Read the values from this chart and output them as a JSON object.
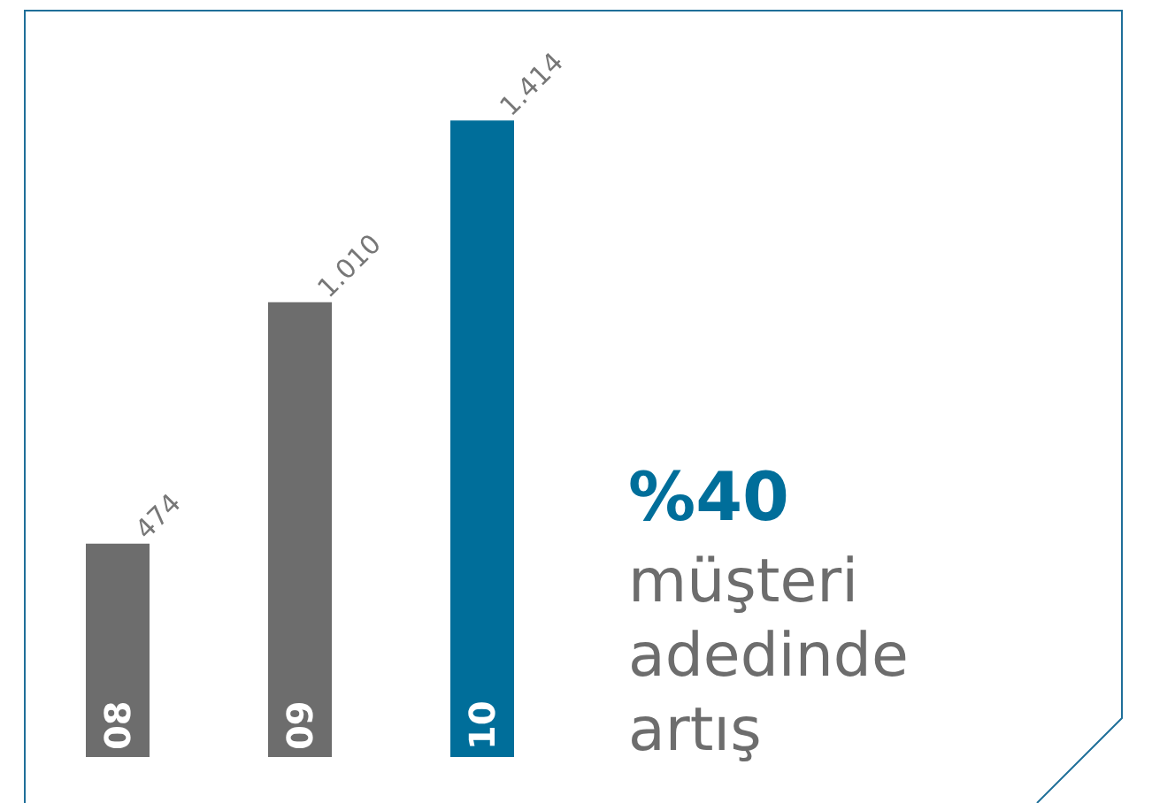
{
  "chart_data": {
    "type": "bar",
    "categories": [
      "08",
      "09",
      "10"
    ],
    "values": [
      474,
      1010,
      1414
    ],
    "value_labels": [
      "474",
      "1.010",
      "1.414"
    ],
    "colors": [
      "#6d6d6d",
      "#6d6d6d",
      "#006e9a"
    ],
    "annotations": [
      "%40",
      "müşteri adedinde artış"
    ]
  }
}
